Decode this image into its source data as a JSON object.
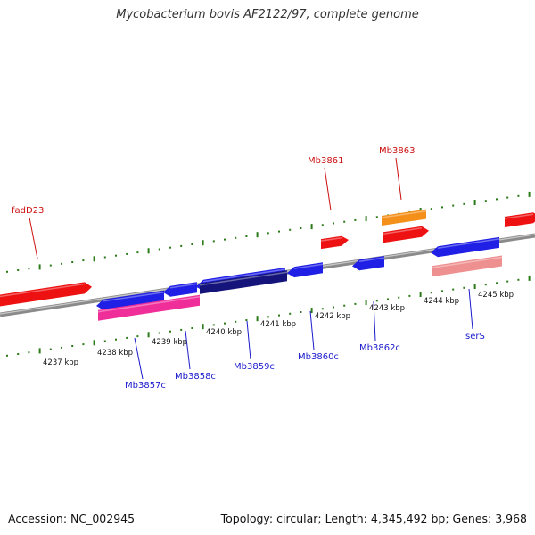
{
  "title": "Mycobacterium bovis AF2122/97, complete genome",
  "footer": {
    "accession": "Accession: NC_002945",
    "summary": "Topology: circular; Length: 4,345,492 bp; Genes: 3,968"
  },
  "colors": {
    "backbone": "#8a8a8a",
    "tick": "#2a7a18",
    "gene_red": "#ee1111",
    "gene_orange": "#f4901a",
    "gene_blue": "#1f1fe6",
    "gene_navy": "#14147a",
    "gene_pink": "#f02e9a",
    "gene_salmon": "#ee8f90",
    "label_red": "#cc1111",
    "label_blue": "#1a1acc"
  },
  "scale_labels": [
    "4237 kbp",
    "4238 kbp",
    "4239 kbp",
    "4240 kbp",
    "4241 kbp",
    "4242 kbp",
    "4243 kbp",
    "4244 kbp",
    "4245 kbp"
  ],
  "gene_labels": [
    {
      "text": "fadD23",
      "color": "red"
    },
    {
      "text": "Mb3861",
      "color": "red"
    },
    {
      "text": "Mb3863",
      "color": "red"
    },
    {
      "text": "Mb3857c",
      "color": "blue"
    },
    {
      "text": "Mb3858c",
      "color": "blue"
    },
    {
      "text": "Mb3859c",
      "color": "blue"
    },
    {
      "text": "Mb3860c",
      "color": "blue"
    },
    {
      "text": "Mb3862c",
      "color": "blue"
    },
    {
      "text": "serS",
      "color": "blue"
    }
  ]
}
